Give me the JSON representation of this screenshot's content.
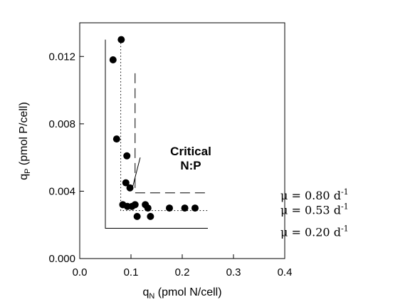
{
  "chart_data": {
    "type": "scatter",
    "x_label": {
      "main": "q",
      "sub": "N",
      "rest": " (pmol N/cell)"
    },
    "y_label": {
      "main": "q",
      "sub": "P",
      "rest": " (pmol P/cell)"
    },
    "xlim": [
      0.0,
      0.4
    ],
    "ylim": [
      0.0,
      0.014
    ],
    "x_ticks": [
      "0.0",
      "0.1",
      "0.2",
      "0.3",
      "0.4"
    ],
    "x_tick_values": [
      0.0,
      0.1,
      0.2,
      0.3,
      0.4
    ],
    "y_ticks": [
      "0.000",
      "0.004",
      "0.008",
      "0.012"
    ],
    "y_tick_values": [
      0.0,
      0.004,
      0.008,
      0.012
    ],
    "grid": false,
    "points": [
      {
        "x": 0.081,
        "y": 0.013
      },
      {
        "x": 0.065,
        "y": 0.0118
      },
      {
        "x": 0.072,
        "y": 0.0071
      },
      {
        "x": 0.092,
        "y": 0.0061
      },
      {
        "x": 0.09,
        "y": 0.0045
      },
      {
        "x": 0.098,
        "y": 0.0042
      },
      {
        "x": 0.084,
        "y": 0.0032
      },
      {
        "x": 0.093,
        "y": 0.0031
      },
      {
        "x": 0.102,
        "y": 0.0031
      },
      {
        "x": 0.108,
        "y": 0.0032
      },
      {
        "x": 0.112,
        "y": 0.0025
      },
      {
        "x": 0.128,
        "y": 0.0032
      },
      {
        "x": 0.133,
        "y": 0.003
      },
      {
        "x": 0.138,
        "y": 0.0025
      },
      {
        "x": 0.175,
        "y": 0.003
      },
      {
        "x": 0.205,
        "y": 0.003
      },
      {
        "x": 0.225,
        "y": 0.003
      }
    ],
    "curves": [
      {
        "style": "solid",
        "label": "0.20",
        "corner": [
          0.05,
          0.0018
        ],
        "top": 0.013,
        "right": 0.25
      },
      {
        "style": "dotted",
        "label": "0.53",
        "corner": [
          0.08,
          0.00285
        ],
        "top": 0.013,
        "right": 0.25
      },
      {
        "style": "dashed",
        "label": "0.80",
        "corner": [
          0.108,
          0.0039
        ],
        "top": 0.011,
        "right": 0.25
      }
    ],
    "mu_prefix": "μ = ",
    "mu_unit": " d",
    "mu_exp": "-1",
    "annotation": {
      "line1": "Critical",
      "line2": "N:P",
      "from": [
        0.118,
        0.006
      ],
      "to": [
        0.102,
        0.0041
      ]
    }
  }
}
